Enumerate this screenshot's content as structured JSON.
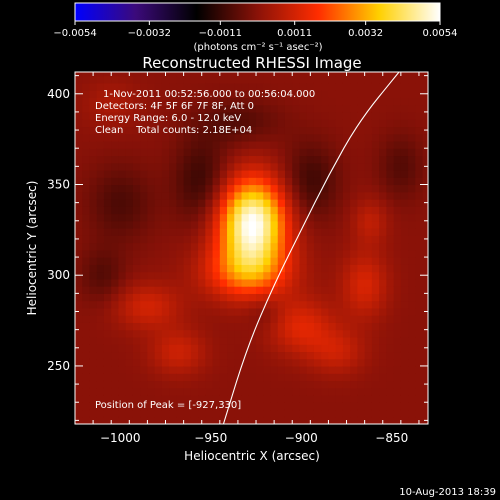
{
  "chart_data": {
    "type": "heatmap",
    "title": "Reconstructed RHESSI Image",
    "xlabel": "Heliocentric X (arcsec)",
    "ylabel": "Heliocentric Y (arcsec)",
    "xlim": [
      -1025,
      -830
    ],
    "ylim": [
      218,
      412
    ],
    "x_ticks": [
      -1000,
      -950,
      -900,
      -850
    ],
    "x_tick_labels": [
      "−1000",
      "−950",
      "−900",
      "−850"
    ],
    "y_ticks": [
      250,
      300,
      350,
      400
    ],
    "y_tick_labels": [
      "250",
      "300",
      "350",
      "400"
    ],
    "colorbar": {
      "range": [
        -0.0054,
        0.0054
      ],
      "ticks": [
        -0.0054,
        -0.0032,
        -0.0011,
        0.0011,
        0.0032,
        0.0054
      ],
      "tick_labels": [
        "−0.0054",
        "−0.0032",
        "−0.0011",
        "0.0011",
        "0.0032",
        "0.0054"
      ],
      "unit_label": "(photons cm⁻² s⁻¹ asec⁻²)",
      "colors": [
        "#0000ff",
        "#3b0a7a",
        "#000000",
        "#8a1208",
        "#ff2d00",
        "#ffd000",
        "#ffffff"
      ]
    },
    "annotations": {
      "time_range": "1-Nov-2011 00:52:56.000 to 00:56:04.000",
      "detectors": "Detectors: 4F 5F 6F 7F 8F, Att 0",
      "energy": "Energy Range: 6.0 - 12.0 keV",
      "clean": "Clean    Total counts: 2.18E+04",
      "peak": "Position of Peak = [-927,330]"
    },
    "peak": {
      "x": -927,
      "y": 330
    },
    "limb_curve": [
      [
        -943,
        218
      ],
      [
        -930,
        260
      ],
      [
        -915,
        295
      ],
      [
        -900,
        325
      ],
      [
        -885,
        355
      ],
      [
        -868,
        385
      ],
      [
        -846,
        412
      ]
    ],
    "emission_sources": [
      {
        "x": -927,
        "y": 329,
        "amplitude": 0.0054,
        "sx": 13,
        "sy": 17
      },
      {
        "x": -930,
        "y": 302,
        "amplitude": 0.0022,
        "sx": 17,
        "sy": 11
      },
      {
        "x": -985,
        "y": 283,
        "amplitude": 0.0011,
        "sx": 13,
        "sy": 9
      },
      {
        "x": -968,
        "y": 258,
        "amplitude": 0.001,
        "sx": 11,
        "sy": 9
      },
      {
        "x": -900,
        "y": 272,
        "amplitude": 0.0013,
        "sx": 13,
        "sy": 11
      },
      {
        "x": -865,
        "y": 295,
        "amplitude": 0.0012,
        "sx": 9,
        "sy": 13
      },
      {
        "x": -862,
        "y": 330,
        "amplitude": 0.0008,
        "sx": 7,
        "sy": 9
      },
      {
        "x": -880,
        "y": 258,
        "amplitude": 0.0009,
        "sx": 11,
        "sy": 9
      },
      {
        "x": -955,
        "y": 352,
        "amplitude": -0.0011,
        "sx": 11,
        "sy": 17
      },
      {
        "x": -895,
        "y": 352,
        "amplitude": -0.001,
        "sx": 11,
        "sy": 15
      },
      {
        "x": -1000,
        "y": 340,
        "amplitude": -0.0008,
        "sx": 13,
        "sy": 15
      },
      {
        "x": -935,
        "y": 385,
        "amplitude": -0.0007,
        "sx": 17,
        "sy": 9
      },
      {
        "x": -845,
        "y": 360,
        "amplitude": -0.0007,
        "sx": 9,
        "sy": 13
      },
      {
        "x": -1005,
        "y": 395,
        "amplitude": 0.0005,
        "sx": 11,
        "sy": 9
      },
      {
        "x": -1010,
        "y": 300,
        "amplitude": -0.0007,
        "sx": 9,
        "sy": 11
      },
      {
        "x": -920,
        "y": 280,
        "amplitude": -0.0005,
        "sx": 7,
        "sy": 7
      }
    ]
  },
  "footer": {
    "timestamp": "10-Aug-2013 18:39"
  }
}
